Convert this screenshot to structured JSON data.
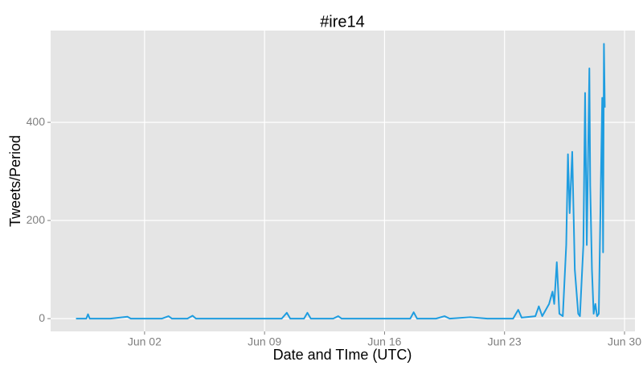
{
  "chart_data": {
    "type": "line",
    "title": "#ire14",
    "x_label": "Date and TIme (UTC)",
    "y_label": "Tweets/Period",
    "color": "#1f9de0",
    "grid": true,
    "x": [
      -2,
      -1.4,
      -1.3,
      -1.2,
      0,
      1,
      1.2,
      3,
      3.4,
      3.6,
      4.5,
      4.8,
      5,
      10,
      10.3,
      10.5,
      11.3,
      11.5,
      11.7,
      13,
      13.3,
      13.5,
      17.5,
      17.7,
      17.9,
      19,
      19.5,
      19.8,
      21,
      22,
      23.5,
      23.8,
      24,
      24.8,
      25,
      25.2,
      25.6,
      25.8,
      25.9,
      26.05,
      26.2,
      26.4,
      26.6,
      26.7,
      26.8,
      26.95,
      27.1,
      27.3,
      27.4,
      27.6,
      27.7,
      27.8,
      27.95,
      28.0,
      28.1,
      28.2,
      28.3,
      28.4,
      28.5,
      28.6,
      28.7,
      28.75,
      28.8,
      28.85
    ],
    "values": [
      0,
      0,
      9,
      0,
      0,
      4,
      0,
      0,
      5,
      0,
      0,
      6,
      0,
      0,
      12,
      0,
      0,
      12,
      0,
      0,
      5,
      0,
      0,
      13,
      0,
      0,
      5,
      0,
      3,
      0,
      0,
      18,
      2,
      5,
      25,
      5,
      30,
      55,
      30,
      115,
      10,
      5,
      150,
      335,
      215,
      340,
      100,
      10,
      5,
      150,
      460,
      150,
      510,
      270,
      100,
      10,
      30,
      5,
      10,
      230,
      450,
      135,
      560,
      430
    ],
    "xlim": [
      -3.48,
      30.61
    ],
    "xticks": [
      {
        "value": 2,
        "label": "Jun 02"
      },
      {
        "value": 9,
        "label": "Jun 09"
      },
      {
        "value": 16,
        "label": "Jun 16"
      },
      {
        "value": 23,
        "label": "Jun 23"
      },
      {
        "value": 30,
        "label": "Jun 30"
      }
    ],
    "ylim": [
      -26,
      587
    ],
    "yticks": [
      0,
      200,
      400
    ]
  }
}
